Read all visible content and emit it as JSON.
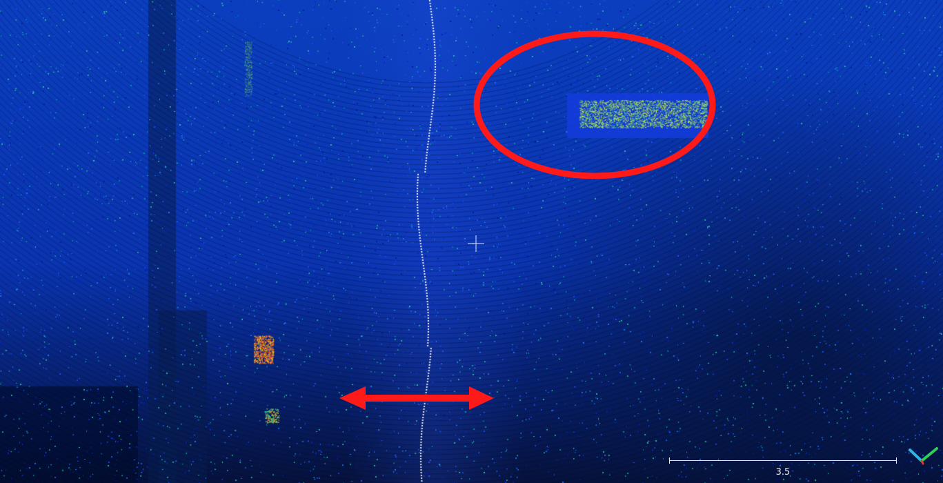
{
  "viewer": {
    "background_top": "#0b3fbf",
    "background_bottom": "#06123a"
  },
  "scale_bar": {
    "label": "3.5"
  },
  "annotations": {
    "highlight_color": "#ff1a1a"
  },
  "icons": {
    "trihedron": "axis-trihedron-icon",
    "crosshair": "crosshair-icon"
  }
}
